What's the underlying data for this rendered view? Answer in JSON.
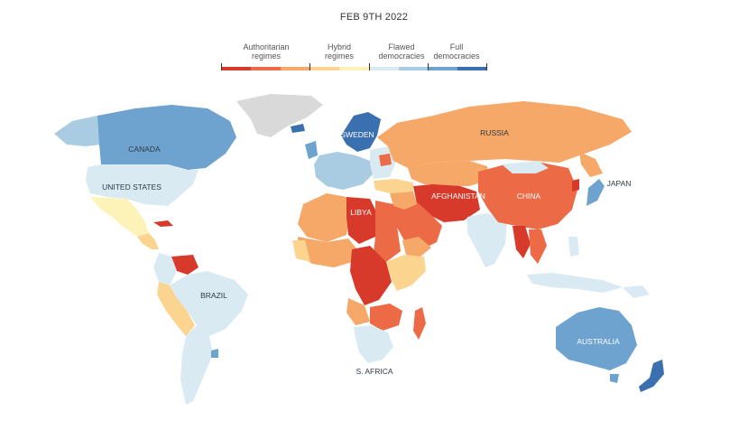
{
  "title": "FEB 9TH 2022",
  "legend": {
    "groups": [
      {
        "label_line1": "Authoritarian",
        "label_line2": "regimes"
      },
      {
        "label_line1": "Hybrid",
        "label_line2": "regimes"
      },
      {
        "label_line1": "Flawed",
        "label_line2": "democracies"
      },
      {
        "label_line1": "Full",
        "label_line2": "democracies"
      }
    ],
    "colors": [
      "#d7392b",
      "#ec6a45",
      "#f6a868",
      "#fbd590",
      "#fdf2b8",
      "#d9eaf3",
      "#a9cce3",
      "#6ea3cf",
      "#3a6fb0"
    ]
  },
  "map_labels": {
    "canada": "CANADA",
    "united_states": "UNITED STATES",
    "brazil": "BRAZIL",
    "russia": "RUSSIA",
    "china": "CHINA",
    "japan": "JAPAN",
    "afghanistan": "AFGHANISTAN",
    "libya": "LIBYA",
    "sweden": "SWEDEN",
    "australia": "AUSTRALIA",
    "south_africa": "S. AFRICA"
  },
  "regions": {
    "greenland": "#d9d9d9",
    "antarctic_gap": "#d9d9d9",
    "no_data": "#d9d9d9"
  }
}
